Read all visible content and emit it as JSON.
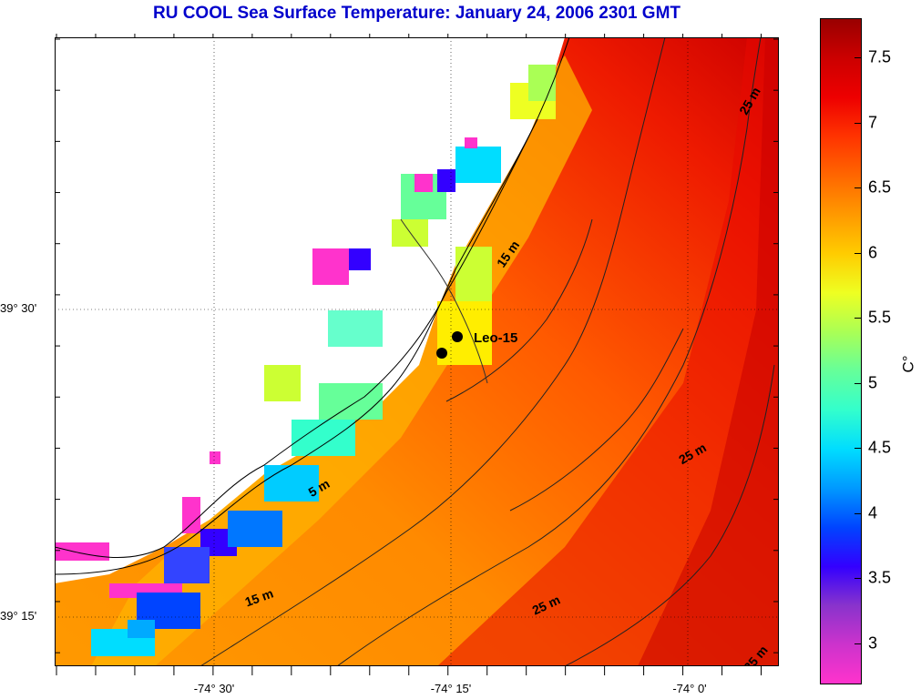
{
  "title": "RU COOL  Sea Surface Temperature:  January 24, 2006 2301 GMT",
  "lat_labels": [
    "39° 30'",
    "39° 15'"
  ],
  "lon_labels": [
    "-74° 30'",
    "-74° 15'",
    "-74° 0'"
  ],
  "station": {
    "label": "Leo-15"
  },
  "contour_labels": [
    "25 m",
    "15 m",
    "5 m",
    "15 m",
    "25 m",
    "25 m",
    "25 m"
  ],
  "colorbar": {
    "unit": "C°",
    "min": 2.7,
    "max": 7.8,
    "ticks": [
      "7.5",
      "7",
      "6.5",
      "6",
      "5.5",
      "5",
      "4.5",
      "4",
      "3.5",
      "3"
    ],
    "colors": [
      "#ff33cc",
      "#cc33cc",
      "#8833cc",
      "#3300ff",
      "#0044ff",
      "#0099ff",
      "#00ddff",
      "#33ffcc",
      "#66ff99",
      "#aaff55",
      "#eeff22",
      "#ffcc00",
      "#ff9900",
      "#ff6600",
      "#ff3300",
      "#ee0000",
      "#cc0000",
      "#990000"
    ]
  },
  "chart_data": {
    "type": "heatmap",
    "title": "RU COOL  Sea Surface Temperature:  January 24, 2006 2301 GMT",
    "variable": "Sea Surface Temperature",
    "unit": "C°",
    "range": [
      2.7,
      7.8
    ],
    "gradient_description": "cold 3–4.5 C° nearshore southwest bays, warming to 6.5–7.8 C° offshore east"
  }
}
